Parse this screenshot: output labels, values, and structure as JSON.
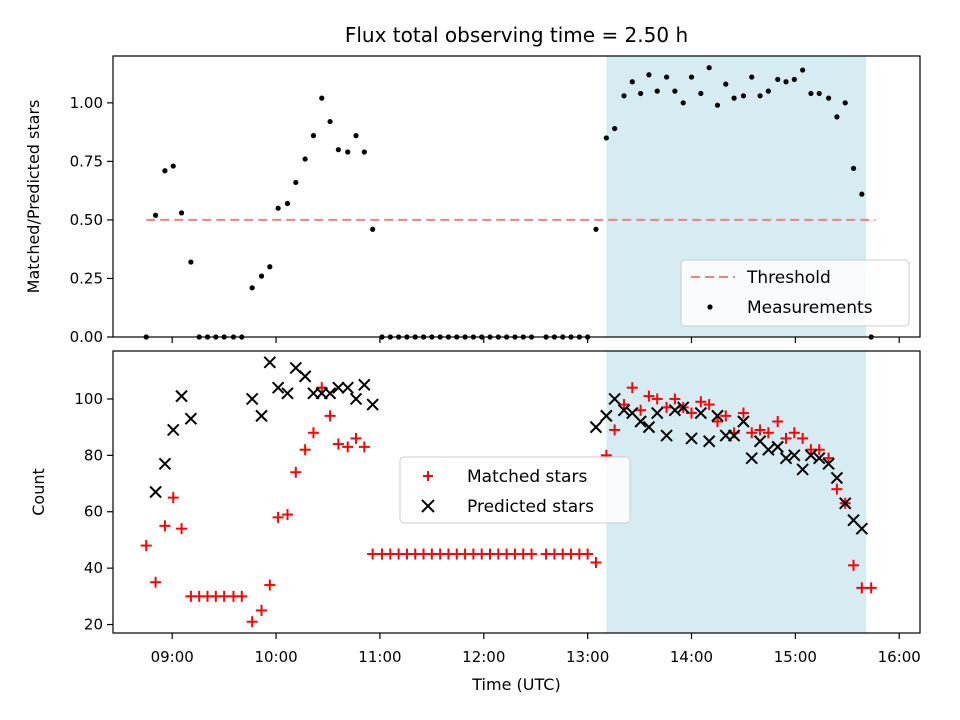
{
  "chart_data": [
    {
      "type": "scatter",
      "title": "Flux total observing time = 2.50 h",
      "xlabel": "",
      "ylabel": "Matched/Predicted stars",
      "x_unit": "hours UTC",
      "xlim": [
        8.43,
        16.2
      ],
      "ylim": [
        0,
        1.2
      ],
      "x_ticks": [
        9,
        10,
        11,
        12,
        13,
        14,
        15,
        16
      ],
      "y_ticks": [
        0.0,
        0.25,
        0.5,
        0.75,
        1.0
      ],
      "y_tick_labels": [
        "0.00",
        "0.25",
        "0.50",
        "0.75",
        "1.00"
      ],
      "shaded_span": [
        13.18,
        15.68
      ],
      "shaded_color": "#add8e6",
      "threshold": {
        "name": "Threshold",
        "value": 0.5,
        "x_range": [
          8.75,
          15.77
        ],
        "color": "#f08080",
        "style": "dashed"
      },
      "legend_position": "lower-right",
      "series": [
        {
          "name": "Measurements",
          "marker": "dot",
          "color": "#000000",
          "points": [
            [
              8.75,
              0.0
            ],
            [
              8.84,
              0.52
            ],
            [
              8.93,
              0.71
            ],
            [
              9.01,
              0.73
            ],
            [
              9.09,
              0.53
            ],
            [
              9.18,
              0.32
            ],
            [
              9.26,
              0.0
            ],
            [
              9.34,
              0.0
            ],
            [
              9.42,
              0.0
            ],
            [
              9.5,
              0.0
            ],
            [
              9.59,
              0.0
            ],
            [
              9.67,
              0.0
            ],
            [
              9.77,
              0.21
            ],
            [
              9.86,
              0.26
            ],
            [
              9.94,
              0.3
            ],
            [
              10.02,
              0.55
            ],
            [
              10.11,
              0.57
            ],
            [
              10.19,
              0.66
            ],
            [
              10.28,
              0.76
            ],
            [
              10.36,
              0.86
            ],
            [
              10.44,
              1.02
            ],
            [
              10.52,
              0.92
            ],
            [
              10.6,
              0.8
            ],
            [
              10.69,
              0.79
            ],
            [
              10.77,
              0.86
            ],
            [
              10.85,
              0.79
            ],
            [
              10.93,
              0.46
            ],
            [
              11.02,
              0.0
            ],
            [
              11.1,
              0.0
            ],
            [
              11.18,
              0.0
            ],
            [
              11.26,
              0.0
            ],
            [
              11.34,
              0.0
            ],
            [
              11.42,
              0.0
            ],
            [
              11.5,
              0.0
            ],
            [
              11.58,
              0.0
            ],
            [
              11.66,
              0.0
            ],
            [
              11.74,
              0.0
            ],
            [
              11.82,
              0.0
            ],
            [
              11.9,
              0.0
            ],
            [
              11.98,
              0.0
            ],
            [
              12.06,
              0.0
            ],
            [
              12.14,
              0.0
            ],
            [
              12.22,
              0.0
            ],
            [
              12.3,
              0.0
            ],
            [
              12.38,
              0.0
            ],
            [
              12.46,
              0.0
            ],
            [
              12.6,
              0.0
            ],
            [
              12.68,
              0.0
            ],
            [
              12.76,
              0.0
            ],
            [
              12.84,
              0.0
            ],
            [
              12.92,
              0.0
            ],
            [
              13.0,
              0.0
            ],
            [
              13.08,
              0.46
            ],
            [
              13.18,
              0.85
            ],
            [
              13.26,
              0.89
            ],
            [
              13.35,
              1.03
            ],
            [
              13.43,
              1.09
            ],
            [
              13.51,
              1.04
            ],
            [
              13.59,
              1.12
            ],
            [
              13.67,
              1.05
            ],
            [
              13.76,
              1.11
            ],
            [
              13.84,
              1.05
            ],
            [
              13.92,
              1.0
            ],
            [
              14.0,
              1.11
            ],
            [
              14.09,
              1.04
            ],
            [
              14.17,
              1.15
            ],
            [
              14.25,
              0.99
            ],
            [
              14.33,
              1.08
            ],
            [
              14.41,
              1.02
            ],
            [
              14.5,
              1.03
            ],
            [
              14.58,
              1.11
            ],
            [
              14.66,
              1.03
            ],
            [
              14.74,
              1.05
            ],
            [
              14.83,
              1.1
            ],
            [
              14.91,
              1.09
            ],
            [
              14.99,
              1.1
            ],
            [
              15.07,
              1.14
            ],
            [
              15.15,
              1.04
            ],
            [
              15.23,
              1.04
            ],
            [
              15.32,
              1.02
            ],
            [
              15.4,
              0.94
            ],
            [
              15.48,
              1.0
            ],
            [
              15.56,
              0.72
            ],
            [
              15.64,
              0.61
            ],
            [
              15.73,
              0.0
            ]
          ]
        }
      ]
    },
    {
      "type": "scatter",
      "title": "",
      "xlabel": "Time (UTC)",
      "ylabel": "Count",
      "x_unit": "hours UTC",
      "xlim": [
        8.43,
        16.2
      ],
      "ylim": [
        17,
        117
      ],
      "x_ticks": [
        9,
        10,
        11,
        12,
        13,
        14,
        15,
        16
      ],
      "x_tick_labels": [
        "09:00",
        "10:00",
        "11:00",
        "12:00",
        "13:00",
        "14:00",
        "15:00",
        "16:00"
      ],
      "y_ticks": [
        20,
        40,
        60,
        80,
        100
      ],
      "y_tick_labels": [
        "20",
        "40",
        "60",
        "80",
        "100"
      ],
      "shaded_span": [
        13.18,
        15.68
      ],
      "shaded_color": "#add8e6",
      "legend_position": "center",
      "series": [
        {
          "name": "Matched stars",
          "marker": "plus",
          "color": "#ff0000",
          "points": [
            [
              8.75,
              48
            ],
            [
              8.84,
              35
            ],
            [
              8.93,
              55
            ],
            [
              9.01,
              65
            ],
            [
              9.09,
              54
            ],
            [
              9.18,
              30
            ],
            [
              9.26,
              30
            ],
            [
              9.34,
              30
            ],
            [
              9.42,
              30
            ],
            [
              9.5,
              30
            ],
            [
              9.59,
              30
            ],
            [
              9.67,
              30
            ],
            [
              9.77,
              21
            ],
            [
              9.86,
              25
            ],
            [
              9.94,
              34
            ],
            [
              10.02,
              58
            ],
            [
              10.11,
              59
            ],
            [
              10.19,
              74
            ],
            [
              10.28,
              82
            ],
            [
              10.36,
              88
            ],
            [
              10.44,
              104
            ],
            [
              10.52,
              94
            ],
            [
              10.6,
              84
            ],
            [
              10.69,
              83
            ],
            [
              10.77,
              86
            ],
            [
              10.85,
              83
            ],
            [
              10.93,
              45
            ],
            [
              11.02,
              45
            ],
            [
              11.1,
              45
            ],
            [
              11.18,
              45
            ],
            [
              11.26,
              45
            ],
            [
              11.34,
              45
            ],
            [
              11.42,
              45
            ],
            [
              11.5,
              45
            ],
            [
              11.58,
              45
            ],
            [
              11.66,
              45
            ],
            [
              11.74,
              45
            ],
            [
              11.82,
              45
            ],
            [
              11.9,
              45
            ],
            [
              11.98,
              45
            ],
            [
              12.06,
              45
            ],
            [
              12.14,
              45
            ],
            [
              12.22,
              45
            ],
            [
              12.3,
              45
            ],
            [
              12.38,
              45
            ],
            [
              12.46,
              45
            ],
            [
              12.6,
              45
            ],
            [
              12.68,
              45
            ],
            [
              12.76,
              45
            ],
            [
              12.84,
              45
            ],
            [
              12.92,
              45
            ],
            [
              13.0,
              45
            ],
            [
              13.08,
              42
            ],
            [
              13.18,
              80
            ],
            [
              13.26,
              89
            ],
            [
              13.35,
              98
            ],
            [
              13.43,
              104
            ],
            [
              13.51,
              96
            ],
            [
              13.59,
              101
            ],
            [
              13.67,
              100
            ],
            [
              13.76,
              97
            ],
            [
              13.84,
              100
            ],
            [
              13.92,
              97
            ],
            [
              14.0,
              95
            ],
            [
              14.09,
              99
            ],
            [
              14.17,
              98
            ],
            [
              14.25,
              92
            ],
            [
              14.33,
              94
            ],
            [
              14.41,
              88
            ],
            [
              14.5,
              95
            ],
            [
              14.58,
              88
            ],
            [
              14.66,
              89
            ],
            [
              14.74,
              88
            ],
            [
              14.83,
              92
            ],
            [
              14.91,
              86
            ],
            [
              14.99,
              88
            ],
            [
              15.07,
              86
            ],
            [
              15.15,
              82
            ],
            [
              15.23,
              82
            ],
            [
              15.32,
              79
            ],
            [
              15.4,
              68
            ],
            [
              15.48,
              63
            ],
            [
              15.56,
              41
            ],
            [
              15.64,
              33
            ],
            [
              15.73,
              33
            ]
          ]
        },
        {
          "name": "Predicted stars",
          "marker": "x",
          "color": "#000000",
          "points": [
            [
              8.84,
              67
            ],
            [
              8.93,
              77
            ],
            [
              9.01,
              89
            ],
            [
              9.09,
              101
            ],
            [
              9.18,
              93
            ],
            [
              9.77,
              100
            ],
            [
              9.86,
              94
            ],
            [
              9.94,
              113
            ],
            [
              10.02,
              104
            ],
            [
              10.11,
              102
            ],
            [
              10.19,
              111
            ],
            [
              10.28,
              108
            ],
            [
              10.36,
              102
            ],
            [
              10.44,
              102
            ],
            [
              10.52,
              102
            ],
            [
              10.6,
              104
            ],
            [
              10.69,
              104
            ],
            [
              10.77,
              100
            ],
            [
              10.85,
              105
            ],
            [
              10.93,
              98
            ],
            [
              13.08,
              90
            ],
            [
              13.18,
              94
            ],
            [
              13.26,
              100
            ],
            [
              13.35,
              96
            ],
            [
              13.43,
              95
            ],
            [
              13.51,
              92
            ],
            [
              13.59,
              90
            ],
            [
              13.67,
              95
            ],
            [
              13.76,
              87
            ],
            [
              13.84,
              96
            ],
            [
              13.92,
              97
            ],
            [
              14.0,
              86
            ],
            [
              14.09,
              95
            ],
            [
              14.17,
              85
            ],
            [
              14.25,
              94
            ],
            [
              14.33,
              87
            ],
            [
              14.41,
              87
            ],
            [
              14.5,
              92
            ],
            [
              14.58,
              79
            ],
            [
              14.66,
              85
            ],
            [
              14.74,
              82
            ],
            [
              14.83,
              83
            ],
            [
              14.91,
              79
            ],
            [
              14.99,
              80
            ],
            [
              15.07,
              75
            ],
            [
              15.15,
              80
            ],
            [
              15.23,
              79
            ],
            [
              15.32,
              77
            ],
            [
              15.4,
              72
            ],
            [
              15.48,
              63
            ],
            [
              15.56,
              57
            ],
            [
              15.64,
              54
            ]
          ]
        }
      ]
    }
  ]
}
